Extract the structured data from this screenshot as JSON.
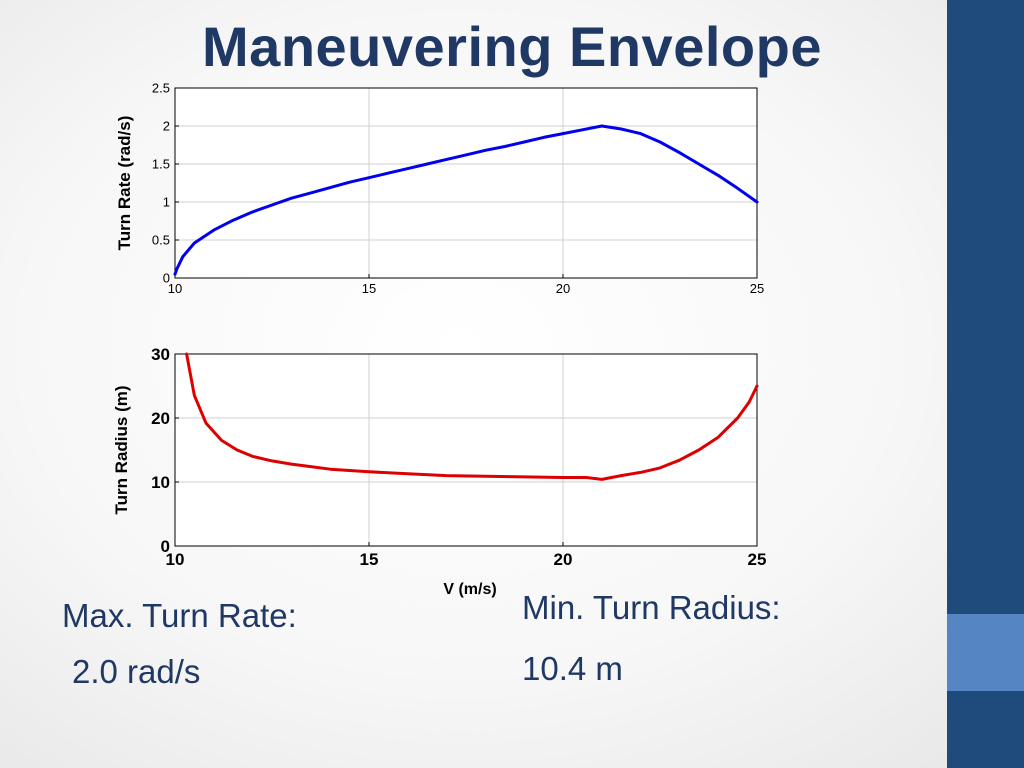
{
  "slide": {
    "title": "Maneuvering Envelope",
    "colors": {
      "sidebar": "#1f4a7c",
      "sidebar_accent": "#5585c2",
      "title": "#1f3864"
    }
  },
  "captions": {
    "max_rate_label": "Max. Turn Rate:",
    "max_rate_value": "2.0 rad/s",
    "min_radius_label": "Min. Turn Radius:",
    "min_radius_value": "10.4 m"
  },
  "chart_data": [
    {
      "type": "line",
      "ylabel": "Turn Rate (rad/s)",
      "xlabel": "",
      "xlim": [
        10,
        25
      ],
      "ylim": [
        0,
        2.5
      ],
      "xticks": [
        "10",
        "15",
        "20",
        "25"
      ],
      "yticks": [
        "0",
        "0.5",
        "1",
        "1.5",
        "2",
        "2.5"
      ],
      "grid": true,
      "series": [
        {
          "color": "#0000ee",
          "x": [
            10,
            10.05,
            10.2,
            10.5,
            11,
            11.5,
            12,
            12.5,
            13,
            13.5,
            14,
            14.5,
            15,
            15.5,
            16,
            16.5,
            17,
            17.5,
            18,
            18.5,
            19,
            19.5,
            20,
            20.5,
            21,
            21.5,
            22,
            22.5,
            23,
            23.5,
            24,
            24.5,
            25
          ],
          "y": [
            0.05,
            0.12,
            0.28,
            0.46,
            0.63,
            0.76,
            0.87,
            0.96,
            1.05,
            1.12,
            1.19,
            1.26,
            1.32,
            1.38,
            1.44,
            1.5,
            1.56,
            1.62,
            1.68,
            1.73,
            1.79,
            1.85,
            1.9,
            1.95,
            2.0,
            1.96,
            1.9,
            1.79,
            1.65,
            1.5,
            1.35,
            1.18,
            1.0
          ]
        }
      ]
    },
    {
      "type": "line",
      "ylabel": "Turn Radius (m)",
      "xlabel": "V (m/s)",
      "xlim": [
        10,
        25
      ],
      "ylim": [
        0,
        30
      ],
      "xticks": [
        "10",
        "15",
        "20",
        "25"
      ],
      "yticks": [
        "0",
        "10",
        "20",
        "30"
      ],
      "grid": true,
      "series": [
        {
          "color": "#dd0000",
          "x": [
            10.3,
            10.5,
            10.8,
            11.2,
            11.6,
            12,
            12.5,
            13,
            13.5,
            14,
            14.5,
            15,
            16,
            17,
            18,
            19,
            20,
            20.6,
            21,
            21.5,
            22,
            22.5,
            23,
            23.5,
            24,
            24.5,
            24.8,
            25
          ],
          "y": [
            30,
            23.5,
            19.2,
            16.5,
            15.0,
            14.0,
            13.3,
            12.8,
            12.4,
            12.0,
            11.8,
            11.6,
            11.3,
            11.0,
            10.9,
            10.8,
            10.7,
            10.7,
            10.4,
            11.0,
            11.5,
            12.2,
            13.4,
            15.0,
            17.0,
            20.0,
            22.5,
            25.0
          ]
        }
      ]
    }
  ]
}
